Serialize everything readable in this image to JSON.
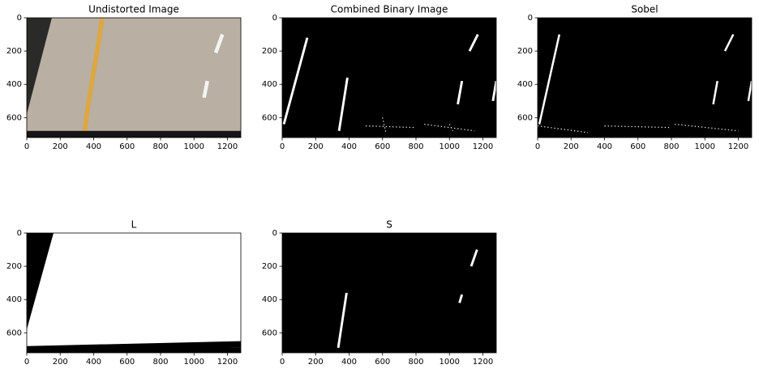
{
  "chart_data": [
    {
      "type": "image",
      "title": "Undistorted Image",
      "xlim": [
        0,
        1280
      ],
      "ylim": [
        720,
        0
      ],
      "xticks": [
        0,
        200,
        400,
        600,
        800,
        1000,
        1200
      ],
      "yticks": [
        0,
        200,
        400,
        600
      ]
    },
    {
      "type": "image",
      "title": "Combined Binary Image",
      "xlim": [
        0,
        1280
      ],
      "ylim": [
        720,
        0
      ],
      "xticks": [
        0,
        200,
        400,
        600,
        800,
        1000,
        1200
      ],
      "yticks": [
        0,
        200,
        400,
        600
      ]
    },
    {
      "type": "image",
      "title": "Sobel",
      "xlim": [
        0,
        1280
      ],
      "ylim": [
        720,
        0
      ],
      "xticks": [
        0,
        200,
        400,
        600,
        800,
        1000,
        1200
      ],
      "yticks": [
        0,
        200,
        400,
        600
      ]
    },
    {
      "type": "image",
      "title": "L",
      "xlim": [
        0,
        1280
      ],
      "ylim": [
        720,
        0
      ],
      "xticks": [
        0,
        200,
        400,
        600,
        800,
        1000,
        1200
      ],
      "yticks": [
        0,
        200,
        400,
        600
      ]
    },
    {
      "type": "image",
      "title": "S",
      "xlim": [
        0,
        1280
      ],
      "ylim": [
        720,
        0
      ],
      "xticks": [
        0,
        200,
        400,
        600,
        800,
        1000,
        1200
      ],
      "yticks": [
        0,
        200,
        400,
        600
      ]
    }
  ]
}
